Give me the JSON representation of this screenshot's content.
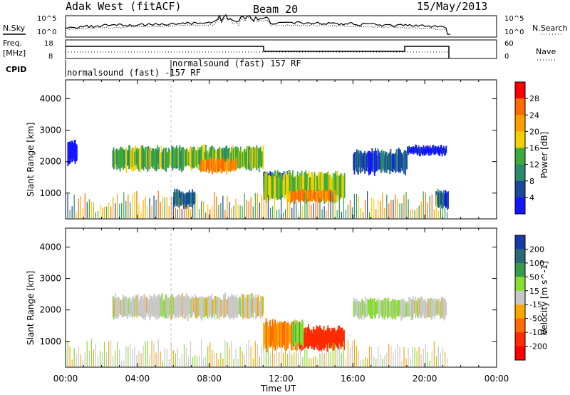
{
  "header": {
    "station": "Adak West (fitACF)",
    "beam": "Beam 20",
    "date": "15/May/2013"
  },
  "noise_panel": {
    "left_label": "N.Sky",
    "left_ticks": [
      "10^5",
      "10^0"
    ],
    "right_ticks": [
      "10^5",
      "10^0"
    ],
    "right_label": "N.Search"
  },
  "freq_panel": {
    "left_label_1": "Freq.",
    "left_label_2": "[MHz]",
    "left_ticks": [
      "18",
      "8"
    ],
    "right_ticks": [
      "60",
      "0"
    ],
    "right_label": "Nave"
  },
  "cpid": {
    "label": "CPID",
    "program_1": "normalsound (fast) -157 RF",
    "program_2": "normalsound (fast) 157 RF"
  },
  "chart_data": [
    {
      "type": "heatmap",
      "quantity": "Power",
      "ylabel": "Slant Range [km]",
      "xlabel": "Time UT",
      "yticks": [
        1000,
        2000,
        3000,
        4000
      ],
      "ylim": [
        180,
        4600
      ],
      "xlim_hours": [
        0,
        24
      ],
      "colorbar": {
        "label": "Power [dB]",
        "ticks": [
          "28",
          "24",
          "20",
          "16",
          "12",
          "8",
          "4"
        ],
        "colors": [
          "#ff0000",
          "#ff6a00",
          "#ffa000",
          "#f5d000",
          "#3caa3c",
          "#2a8a6e",
          "#1a4a9a",
          "#1515ff"
        ]
      },
      "echo_regions": [
        {
          "t0": 0.1,
          "t1": 0.6,
          "r0": 1900,
          "r1": 2700,
          "level": 4
        },
        {
          "t0": 2.6,
          "t1": 11.0,
          "r0": 1700,
          "r1": 2500,
          "level": 18
        },
        {
          "t0": 7.5,
          "t1": 9.5,
          "r0": 1650,
          "r1": 2100,
          "level": 28
        },
        {
          "t0": 11.0,
          "t1": 12.5,
          "r0": 1300,
          "r1": 1700,
          "level": 10
        },
        {
          "t0": 11.0,
          "t1": 15.5,
          "r0": 700,
          "r1": 1700,
          "level": 20
        },
        {
          "t0": 12.5,
          "t1": 15.0,
          "r0": 700,
          "r1": 1100,
          "level": 28
        },
        {
          "t0": 16.0,
          "t1": 19.0,
          "r0": 1600,
          "r1": 2400,
          "level": 10
        },
        {
          "t0": 19.0,
          "t1": 21.2,
          "r0": 2200,
          "r1": 2500,
          "level": 6
        },
        {
          "t0": 6.0,
          "t1": 7.2,
          "r0": 500,
          "r1": 1100,
          "level": 12
        },
        {
          "t0": 20.6,
          "t1": 21.3,
          "r0": 500,
          "r1": 1100,
          "level": 10
        }
      ]
    },
    {
      "type": "heatmap",
      "quantity": "Velocity",
      "ylabel": "Slant Range [km]",
      "xlabel": "Time UT",
      "yticks": [
        1000,
        2000,
        3000,
        4000
      ],
      "ylim": [
        180,
        4600
      ],
      "xlim_hours": [
        0,
        24
      ],
      "xticks": [
        "00:00",
        "04:00",
        "08:00",
        "12:00",
        "16:00",
        "20:00",
        "00:00"
      ],
      "colorbar": {
        "label": "Velocity [m s^-1]",
        "ticks": [
          "200",
          "100",
          "50",
          "15",
          "-15",
          "-50",
          "-100",
          "-200"
        ],
        "colors": [
          "#1a3aaa",
          "#2a6a7a",
          "#3a9a4a",
          "#88dd33",
          "#c8c8c8",
          "#ffa500",
          "#ff6a00",
          "#ff2a00",
          "#ff0000"
        ]
      },
      "echo_regions": [
        {
          "t0": 2.6,
          "t1": 11.0,
          "r0": 1700,
          "r1": 2500,
          "velocity": 0
        },
        {
          "t0": 11.0,
          "t1": 13.0,
          "r0": 700,
          "r1": 1700,
          "velocity": -50
        },
        {
          "t0": 13.0,
          "t1": 15.5,
          "r0": 700,
          "r1": 1500,
          "velocity": -150
        },
        {
          "t0": 12.6,
          "t1": 13.2,
          "r0": 800,
          "r1": 1700,
          "velocity": 40
        },
        {
          "t0": 16.0,
          "t1": 19.0,
          "r0": 1700,
          "r1": 2400,
          "velocity": 20
        },
        {
          "t0": 19.0,
          "t1": 21.2,
          "r0": 1700,
          "r1": 2400,
          "velocity": 0
        }
      ]
    }
  ],
  "xaxis": {
    "label": "Time UT",
    "ticks": [
      "00:00",
      "04:00",
      "08:00",
      "12:00",
      "16:00",
      "20:00",
      "00:00"
    ]
  }
}
